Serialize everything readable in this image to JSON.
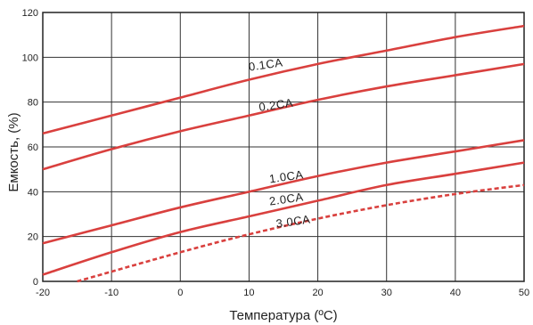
{
  "chart_data": {
    "type": "line",
    "xlabel": "Температура (ºC)",
    "ylabel": "Емкость, (%)",
    "xlim": [
      -20,
      50
    ],
    "ylim": [
      0,
      120
    ],
    "x_ticks": [
      "-20",
      "-10",
      "0",
      "10",
      "20",
      "30",
      "40",
      "50"
    ],
    "y_ticks": [
      "0",
      "20",
      "40",
      "60",
      "80",
      "100",
      "120"
    ],
    "grid": true,
    "x": [
      -20,
      -10,
      0,
      10,
      20,
      30,
      40,
      50
    ],
    "series": [
      {
        "name": "0.1CA",
        "values": [
          66,
          74,
          82,
          90,
          97,
          103,
          109,
          114
        ],
        "color": "#d9403e",
        "dashed": false
      },
      {
        "name": "0.2CA",
        "values": [
          50,
          59,
          67,
          74,
          81,
          87,
          92,
          97
        ],
        "color": "#d9403e",
        "dashed": false
      },
      {
        "name": "1.0CA",
        "values": [
          17,
          25,
          33,
          40,
          47,
          53,
          58,
          63
        ],
        "color": "#d9403e",
        "dashed": false
      },
      {
        "name": "2.0CA",
        "values": [
          3,
          13,
          22,
          29,
          36,
          43,
          48,
          53
        ],
        "color": "#d9403e",
        "dashed": false
      },
      {
        "name": "3.0CA",
        "values": [
          null,
          null,
          13,
          21,
          28,
          34,
          39,
          43
        ],
        "color": "#d9403e",
        "dashed": true,
        "start": [
          -15,
          0
        ]
      }
    ],
    "series_labels": [
      {
        "name": "0.1CA",
        "at": [
          12.5,
          95
        ]
      },
      {
        "name": "0.2CA",
        "at": [
          14,
          77
        ]
      },
      {
        "name": "1.0CA",
        "at": [
          15.5,
          45
        ]
      },
      {
        "name": "2.0CA",
        "at": [
          15.5,
          35
        ]
      },
      {
        "name": "3.0CA",
        "at": [
          16.5,
          25
        ]
      }
    ]
  }
}
